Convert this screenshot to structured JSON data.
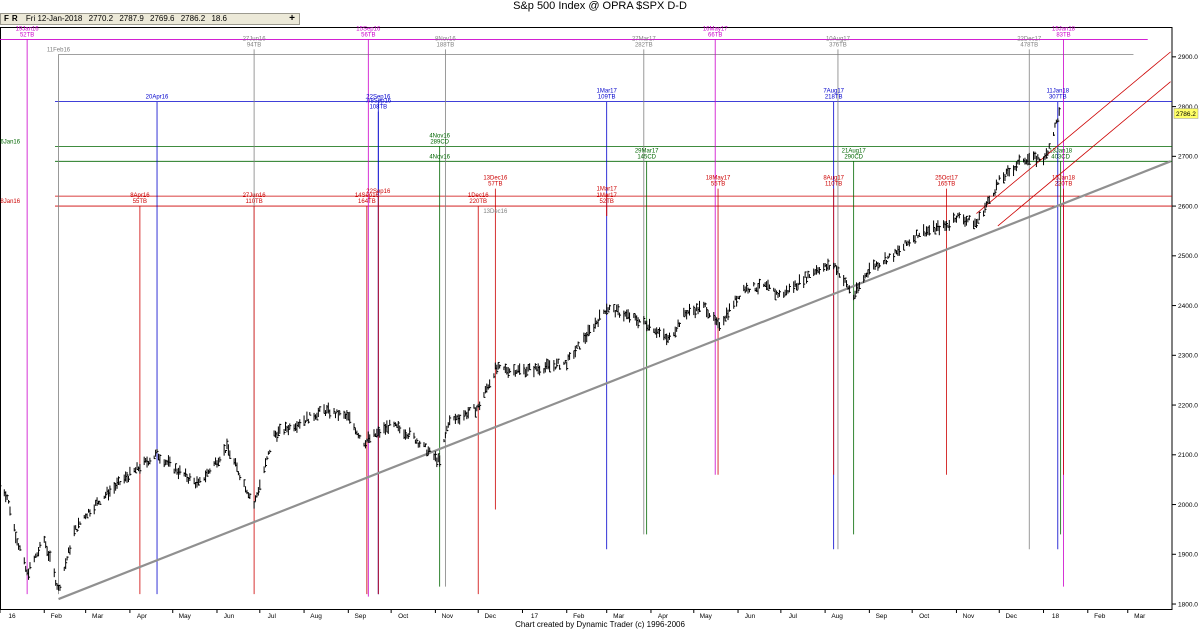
{
  "window": {
    "title": "S&p 500 Index @ OPRA $SPX   D-D"
  },
  "toolbar": {
    "btn_f": "F",
    "btn_r": "R",
    "date": "Fri 12-Jan-2018",
    "open": "2770.2",
    "high": "2787.9",
    "low": "2769.6",
    "close": "2786.2",
    "range": "18.6",
    "add_symbol": "+"
  },
  "footer": {
    "credit": "Chart created by Dynamic Trader  (c) 1996-2006"
  },
  "chart_data": {
    "type": "ohlc",
    "title": "S&p 500 Index @ OPRA $SPX   D-D",
    "ylim": [
      1790,
      2960
    ],
    "ytick_labels": [
      "2900.0",
      "2800.0",
      "2700.0",
      "2600.0",
      "2500.0",
      "2400.0",
      "2300.0",
      "2200.0",
      "2100.0",
      "2000.0",
      "1900.0",
      "1800.0"
    ],
    "current_price": "2786.2",
    "xtick_labels": [
      "16",
      "Feb",
      "Mar",
      "Apr",
      "May",
      "Jun",
      "Jul",
      "Aug",
      "Sep",
      "Oct",
      "Nov",
      "Dec",
      "17",
      "Feb",
      "Mar",
      "Apr",
      "May",
      "Jun",
      "Jul",
      "Aug",
      "Sep",
      "Oct",
      "Nov",
      "Dec",
      "18",
      "Feb",
      "Mar"
    ],
    "price_path": [
      [
        "2016-01-01",
        2044
      ],
      [
        "2016-01-06",
        2016
      ],
      [
        "2016-01-12",
        1940
      ],
      [
        "2016-01-20",
        1860
      ],
      [
        "2016-02-01",
        1930
      ],
      [
        "2016-02-11",
        1829
      ],
      [
        "2016-02-22",
        1945
      ],
      [
        "2016-03-01",
        1980
      ],
      [
        "2016-03-15",
        2020
      ],
      [
        "2016-04-01",
        2060
      ],
      [
        "2016-04-20",
        2102
      ],
      [
        "2016-05-01",
        2075
      ],
      [
        "2016-05-19",
        2040
      ],
      [
        "2016-06-08",
        2115
      ],
      [
        "2016-06-27",
        2000
      ],
      [
        "2016-07-11",
        2140
      ],
      [
        "2016-08-01",
        2170
      ],
      [
        "2016-08-15",
        2190
      ],
      [
        "2016-09-01",
        2175
      ],
      [
        "2016-09-12",
        2125
      ],
      [
        "2016-10-01",
        2160
      ],
      [
        "2016-10-15",
        2140
      ],
      [
        "2016-11-04",
        2085
      ],
      [
        "2016-11-10",
        2165
      ],
      [
        "2016-12-01",
        2195
      ],
      [
        "2016-12-13",
        2272
      ],
      [
        "2017-01-01",
        2270
      ],
      [
        "2017-01-15",
        2275
      ],
      [
        "2017-02-01",
        2285
      ],
      [
        "2017-02-15",
        2340
      ],
      [
        "2017-03-01",
        2396
      ],
      [
        "2017-03-15",
        2380
      ],
      [
        "2017-04-01",
        2360
      ],
      [
        "2017-04-13",
        2330
      ],
      [
        "2017-04-25",
        2385
      ],
      [
        "2017-05-09",
        2398
      ],
      [
        "2017-05-18",
        2358
      ],
      [
        "2017-06-05",
        2435
      ],
      [
        "2017-06-20",
        2438
      ],
      [
        "2017-07-01",
        2420
      ],
      [
        "2017-07-27",
        2475
      ],
      [
        "2017-08-08",
        2480
      ],
      [
        "2017-08-21",
        2418
      ],
      [
        "2017-09-01",
        2475
      ],
      [
        "2017-09-20",
        2505
      ],
      [
        "2017-10-05",
        2545
      ],
      [
        "2017-10-25",
        2560
      ],
      [
        "2017-11-01",
        2580
      ],
      [
        "2017-11-15",
        2565
      ],
      [
        "2017-12-01",
        2650
      ],
      [
        "2017-12-18",
        2695
      ],
      [
        "2018-01-02",
        2695
      ],
      [
        "2018-01-12",
        2786
      ]
    ],
    "trendline": [
      [
        "2016-02-11",
        1810
      ],
      [
        "2018-03-31",
        2690
      ]
    ],
    "channel_upper": [
      [
        "2017-11-15",
        2585
      ],
      [
        "2018-03-31",
        2910
      ]
    ],
    "channel_lower": [
      [
        "2017-11-30",
        2560
      ],
      [
        "2018-03-31",
        2850
      ]
    ],
    "horizontal_lines": [
      {
        "y": 2810,
        "color": "#0000cc"
      },
      {
        "y": 2720,
        "color": "#006600"
      },
      {
        "y": 2690,
        "color": "#006600"
      },
      {
        "y": 2600,
        "color": "#cc0000"
      },
      {
        "y": 2620,
        "color": "#cc0000"
      }
    ],
    "colors": {
      "magenta": "#cc00cc",
      "gray": "#808080",
      "blue": "#0000cc",
      "green": "#006600",
      "red": "#cc0000",
      "bars": "#000000",
      "trend": "#909090"
    },
    "annotations": [
      {
        "date": "2016-01-20",
        "y_top": 2935,
        "y_bot": 1820,
        "c": "magenta",
        "l1": "19Jan16",
        "l2": "52TB"
      },
      {
        "date": "2016-02-11",
        "y_top": 2905,
        "y_bot": 1820,
        "c": "gray",
        "l1": "11Feb16",
        "l2": ""
      },
      {
        "date": "2016-06-27",
        "y_top": 2915,
        "y_bot": 2000,
        "c": "gray",
        "l1": "27Jun16",
        "l2": "94TB"
      },
      {
        "date": "2016-09-15",
        "y_top": 2935,
        "y_bot": 1815,
        "c": "magenta",
        "l1": "15Sep16",
        "l2": "56TB"
      },
      {
        "date": "2016-11-08",
        "y_top": 2915,
        "y_bot": 1835,
        "c": "gray",
        "l1": "8Nov16",
        "l2": "188TB"
      },
      {
        "date": "2017-03-27",
        "y_top": 2915,
        "y_bot": 1940,
        "c": "gray",
        "l1": "27Mar17",
        "l2": "282TB"
      },
      {
        "date": "2017-05-16",
        "y_top": 2935,
        "y_bot": 2060,
        "c": "magenta",
        "l1": "16May17",
        "l2": "66TB"
      },
      {
        "date": "2017-08-10",
        "y_top": 2915,
        "y_bot": 1910,
        "c": "gray",
        "l1": "10Aug17",
        "l2": "376TB"
      },
      {
        "date": "2017-12-22",
        "y_top": 2915,
        "y_bot": 1910,
        "c": "gray",
        "l1": "22Dec17",
        "l2": "478TB"
      },
      {
        "date": "2018-01-15",
        "y_top": 2935,
        "y_bot": 1835,
        "c": "magenta",
        "l1": "15Jan18",
        "l2": "83TB"
      },
      {
        "date": "2016-04-20",
        "y_top": 2810,
        "y_bot": 1820,
        "c": "blue",
        "l1": "20Apr16",
        "l2": ""
      },
      {
        "date": "2016-09-22",
        "y_top": 2810,
        "y_bot": 1820,
        "c": "blue",
        "l1": "22Sep16",
        "l2": ""
      },
      {
        "date": "2016-09-22",
        "y_top": 2790,
        "y_bot": 1820,
        "c": "blue",
        "l1": "7/8Sep16",
        "l2": "108TB"
      },
      {
        "date": "2017-03-01",
        "y_top": 2810,
        "y_bot": 1910,
        "c": "blue",
        "l1": "1Mar17",
        "l2": "109TB"
      },
      {
        "date": "2017-08-07",
        "y_top": 2810,
        "y_bot": 1910,
        "c": "blue",
        "l1": "7Aug17",
        "l2": "218TB"
      },
      {
        "date": "2018-01-11",
        "y_top": 2810,
        "y_bot": 1910,
        "c": "blue",
        "l1": "11Jan18",
        "l2": "307TB"
      },
      {
        "date": "2016-01-07",
        "y_top": 2720,
        "y_bot": 2720,
        "c": "green",
        "l1": "26Jan16",
        "l2": ""
      },
      {
        "date": "2016-11-04",
        "y_top": 2720,
        "y_bot": 1835,
        "c": "green",
        "l1": "4Nov16",
        "l2": "289CD"
      },
      {
        "date": "2016-11-04",
        "y_top": 2690,
        "y_bot": 2690,
        "c": "green",
        "l1": "4Nov16",
        "l2": ""
      },
      {
        "date": "2017-03-29",
        "y_top": 2690,
        "y_bot": 1940,
        "c": "green",
        "l1": "29Mar17",
        "l2": "145CD"
      },
      {
        "date": "2017-08-21",
        "y_top": 2690,
        "y_bot": 1940,
        "c": "green",
        "l1": "21Aug17",
        "l2": "290CD"
      },
      {
        "date": "2018-01-13",
        "y_top": 2690,
        "y_bot": 1940,
        "c": "green",
        "l1": "13Jan18",
        "l2": "403CD"
      },
      {
        "date": "2016-01-07",
        "y_top": 2600,
        "y_bot": 2600,
        "c": "red",
        "l1": "28Jan16",
        "l2": ""
      },
      {
        "date": "2016-04-08",
        "y_top": 2600,
        "y_bot": 1820,
        "c": "red",
        "l1": "8Apr16",
        "l2": "55TB"
      },
      {
        "date": "2016-06-27",
        "y_top": 2600,
        "y_bot": 1820,
        "c": "red",
        "l1": "27Jun16",
        "l2": "110TB"
      },
      {
        "date": "2016-09-14",
        "y_top": 2600,
        "y_bot": 1820,
        "c": "red",
        "l1": "14Sep16",
        "l2": "164TB"
      },
      {
        "date": "2016-09-22",
        "y_top": 2620,
        "y_bot": 1820,
        "c": "red",
        "l1": "22Sep16",
        "l2": ""
      },
      {
        "date": "2016-12-01",
        "y_top": 2600,
        "y_bot": 1820,
        "c": "red",
        "l1": "1Dec16",
        "l2": "220TB"
      },
      {
        "date": "2016-12-13",
        "y_top": 2635,
        "y_bot": 1990,
        "c": "red",
        "l1": "13Dec16",
        "l2": "57TB"
      },
      {
        "date": "2016-12-13",
        "y_top": 2580,
        "y_bot": 2580,
        "c": "gray",
        "l1": "13Dec16",
        "l2": ""
      },
      {
        "date": "2017-03-01",
        "y_top": 2625,
        "y_bot": 2580,
        "c": "red",
        "l1": "1Mar17",
        "l2": ""
      },
      {
        "date": "2017-03-01",
        "y_top": 2600,
        "y_bot": 2580,
        "c": "red",
        "l1": "1Mar17",
        "l2": "52TB"
      },
      {
        "date": "2017-05-18",
        "y_top": 2635,
        "y_bot": 2060,
        "c": "red",
        "l1": "18May17",
        "l2": "55TB"
      },
      {
        "date": "2017-08-07",
        "y_top": 2635,
        "y_bot": 2060,
        "c": "red",
        "l1": "8Aug17",
        "l2": "110TB"
      },
      {
        "date": "2017-10-25",
        "y_top": 2635,
        "y_bot": 2060,
        "c": "red",
        "l1": "25Oct17",
        "l2": "165TB"
      },
      {
        "date": "2018-01-15",
        "y_top": 2635,
        "y_bot": 2060,
        "c": "red",
        "l1": "15Jan18",
        "l2": "220TB"
      }
    ]
  }
}
